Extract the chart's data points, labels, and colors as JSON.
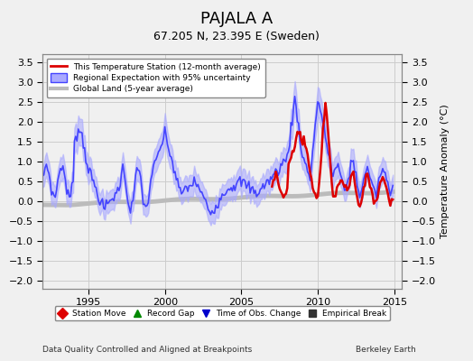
{
  "title": "PAJALA A",
  "subtitle": "67.205 N, 23.395 E (Sweden)",
  "ylabel": "Temperature Anomaly (°C)",
  "xlabel_left": "Data Quality Controlled and Aligned at Breakpoints",
  "xlabel_right": "Berkeley Earth",
  "xlim": [
    1992,
    2015.5
  ],
  "ylim": [
    -2.2,
    3.7
  ],
  "yticks": [
    -2,
    -1.5,
    -1,
    -0.5,
    0,
    0.5,
    1,
    1.5,
    2,
    2.5,
    3,
    3.5
  ],
  "xticks": [
    1995,
    2000,
    2005,
    2010,
    2015
  ],
  "regional_color": "#4444ff",
  "regional_fill": "#aaaaff",
  "station_color": "#dd0000",
  "global_color": "#bbbbbb",
  "legend_items": [
    "This Temperature Station (12-month average)",
    "Regional Expectation with 95% uncertainty",
    "Global Land (5-year average)"
  ],
  "marker_legend": [
    {
      "label": "Station Move",
      "color": "#dd0000",
      "marker": "D"
    },
    {
      "label": "Record Gap",
      "color": "#008800",
      "marker": "^"
    },
    {
      "label": "Time of Obs. Change",
      "color": "#0000cc",
      "marker": "v"
    },
    {
      "label": "Empirical Break",
      "color": "#333333",
      "marker": "s"
    }
  ],
  "background_color": "#f0f0f0",
  "grid_color": "#cccccc"
}
